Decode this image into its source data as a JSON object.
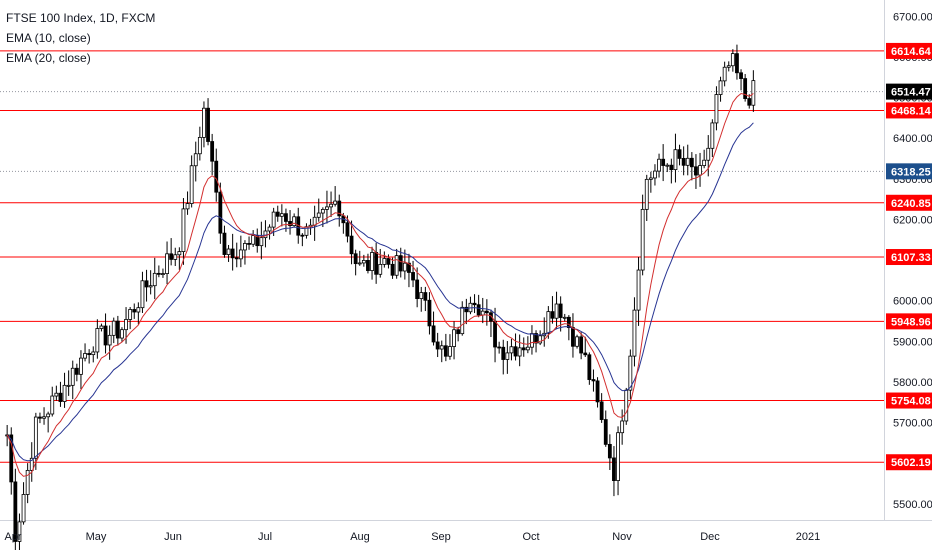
{
  "legend": {
    "title": "FTSE 100 Index, 1D, FXCM",
    "ema10": "EMA (10, close)",
    "ema20": "EMA (20, close)"
  },
  "colors": {
    "level_line": "#ff0000",
    "ema10": "#d32f2f",
    "ema20": "#283593",
    "candle": "#000000",
    "axis_text": "#131722",
    "current_tag_bg": "#000000",
    "blue_tag_bg": "#1c4f8c",
    "level_tag_bg": "#ff0000"
  },
  "chart_data": {
    "type": "candlestick",
    "title": "FTSE 100 Index, 1D, FXCM",
    "x_labels": [
      "Apr",
      "May",
      "Jun",
      "Jul",
      "Aug",
      "Sep",
      "Oct",
      "Nov",
      "Dec",
      "2021"
    ],
    "y_ticks": [
      5500,
      5600,
      5700,
      5800,
      5900,
      6000,
      6100,
      6200,
      6300,
      6400,
      6500,
      6600,
      6700
    ],
    "ylim": [
      5460,
      6740
    ],
    "horizontal_levels": [
      6614.64,
      6468.14,
      6240.85,
      6107.33,
      5948.96,
      5754.08,
      5602.19
    ],
    "price_tags": {
      "current": 6514.47,
      "marker": 6318.25
    },
    "dotted_lines": [
      6514.47,
      6318.25
    ],
    "price_points": [
      {
        "x": "Mar 31",
        "y": 5670
      },
      {
        "x": "Apr 03",
        "y": 5420
      },
      {
        "x": "Apr 10",
        "y": 5690
      },
      {
        "x": "Apr 20",
        "y": 5790
      },
      {
        "x": "Apr 30",
        "y": 5900
      },
      {
        "x": "May 10",
        "y": 5930
      },
      {
        "x": "May 20",
        "y": 6050
      },
      {
        "x": "May 30",
        "y": 6130
      },
      {
        "x": "Jun 08",
        "y": 6470
      },
      {
        "x": "Jun 15",
        "y": 6130
      },
      {
        "x": "Jun 25",
        "y": 6130
      },
      {
        "x": "Jul 05",
        "y": 6220
      },
      {
        "x": "Jul 15",
        "y": 6160
      },
      {
        "x": "Jul 25",
        "y": 6250
      },
      {
        "x": "Aug 01",
        "y": 6080
      },
      {
        "x": "Aug 10",
        "y": 6100
      },
      {
        "x": "Aug 20",
        "y": 6060
      },
      {
        "x": "Sep 01",
        "y": 5850
      },
      {
        "x": "Sep 10",
        "y": 6030
      },
      {
        "x": "Sep 20",
        "y": 5880
      },
      {
        "x": "Oct 01",
        "y": 5900
      },
      {
        "x": "Oct 10",
        "y": 6000
      },
      {
        "x": "Oct 20",
        "y": 5850
      },
      {
        "x": "Oct 30",
        "y": 5580
      },
      {
        "x": "Nov 05",
        "y": 5900
      },
      {
        "x": "Nov 10",
        "y": 6300
      },
      {
        "x": "Nov 20",
        "y": 6350
      },
      {
        "x": "Nov 30",
        "y": 6300
      },
      {
        "x": "Dec 05",
        "y": 6500
      },
      {
        "x": "Dec 10",
        "y": 6590
      },
      {
        "x": "Dec 15",
        "y": 6500
      },
      {
        "x": "Dec 18",
        "y": 6514
      }
    ]
  }
}
